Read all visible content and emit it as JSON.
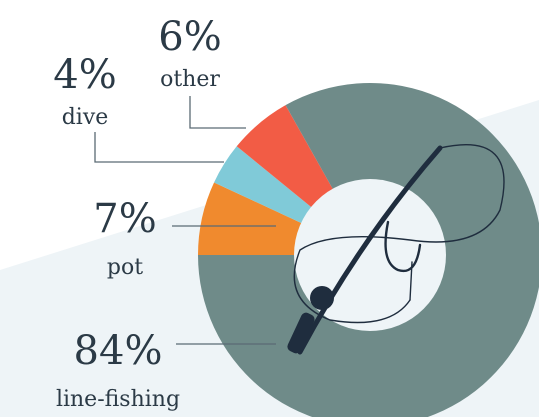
{
  "chart_data": {
    "type": "donut",
    "categories": [
      "pot",
      "dive",
      "other",
      "line-fishing"
    ],
    "values": [
      7,
      4,
      6,
      84
    ],
    "value_labels": [
      "7%",
      "4%",
      "6%",
      "84%"
    ],
    "colors": [
      "#f08a2e",
      "#80cad8",
      "#f25c45",
      "#6f8b89"
    ]
  }
}
